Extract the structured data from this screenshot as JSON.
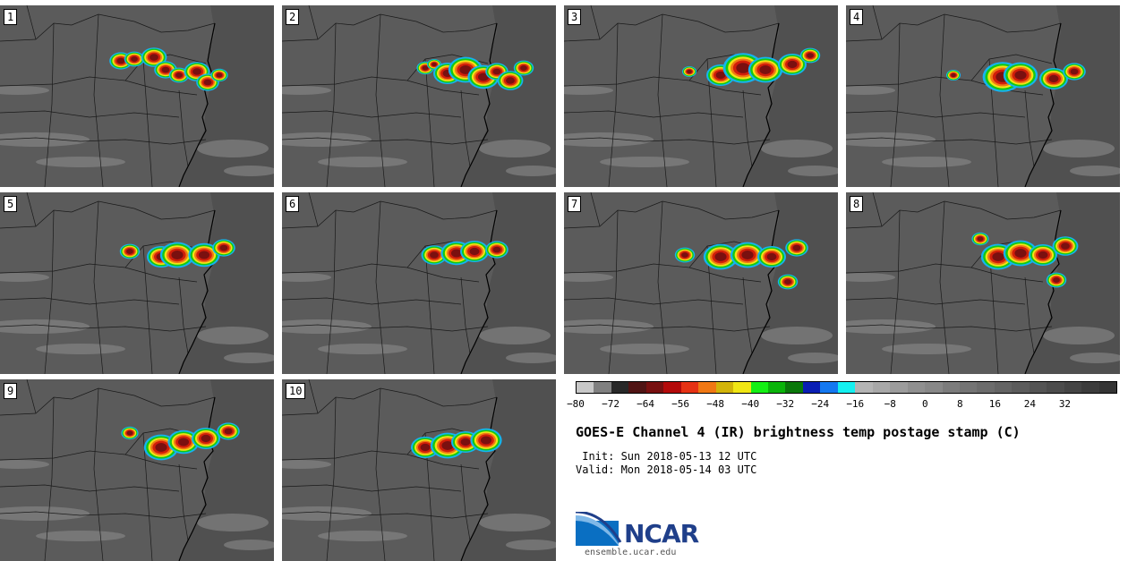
{
  "panels": [
    {
      "label": "1"
    },
    {
      "label": "2"
    },
    {
      "label": "3"
    },
    {
      "label": "4"
    },
    {
      "label": "5"
    },
    {
      "label": "6"
    },
    {
      "label": "7"
    },
    {
      "label": "8"
    },
    {
      "label": "9"
    },
    {
      "label": "10"
    }
  ],
  "colorbar": {
    "colors": [
      "#c8c8c8",
      "#808080",
      "#282828",
      "#501414",
      "#781010",
      "#b40a0a",
      "#e63214",
      "#f07814",
      "#d2b40a",
      "#f0e614",
      "#14f014",
      "#0ab40a",
      "#0a780a",
      "#0a1eb4",
      "#1478f0",
      "#14f0f0",
      "#b4b4b4",
      "#a8a8a8",
      "#9c9c9c",
      "#909090",
      "#888888",
      "#7c7c7c",
      "#747474",
      "#6c6c6c",
      "#646464",
      "#5c5c5c",
      "#545454",
      "#4c4c4c",
      "#444444",
      "#3c3c3c",
      "#343434"
    ],
    "ticks": [
      "−80",
      "−72",
      "−64",
      "−56",
      "−48",
      "−40",
      "−32",
      "−24",
      "−16",
      "−8",
      "0",
      "8",
      "16",
      "24",
      "32"
    ]
  },
  "title": "GOES-E Channel 4 (IR) brightness temp postage stamp (C)",
  "init_line": " Init: Sun 2018-05-13 12 UTC",
  "valid_line": "Valid: Mon 2018-05-14 03 UTC",
  "logo": {
    "name": "NCAR",
    "url": "ensemble.ucar.edu"
  }
}
